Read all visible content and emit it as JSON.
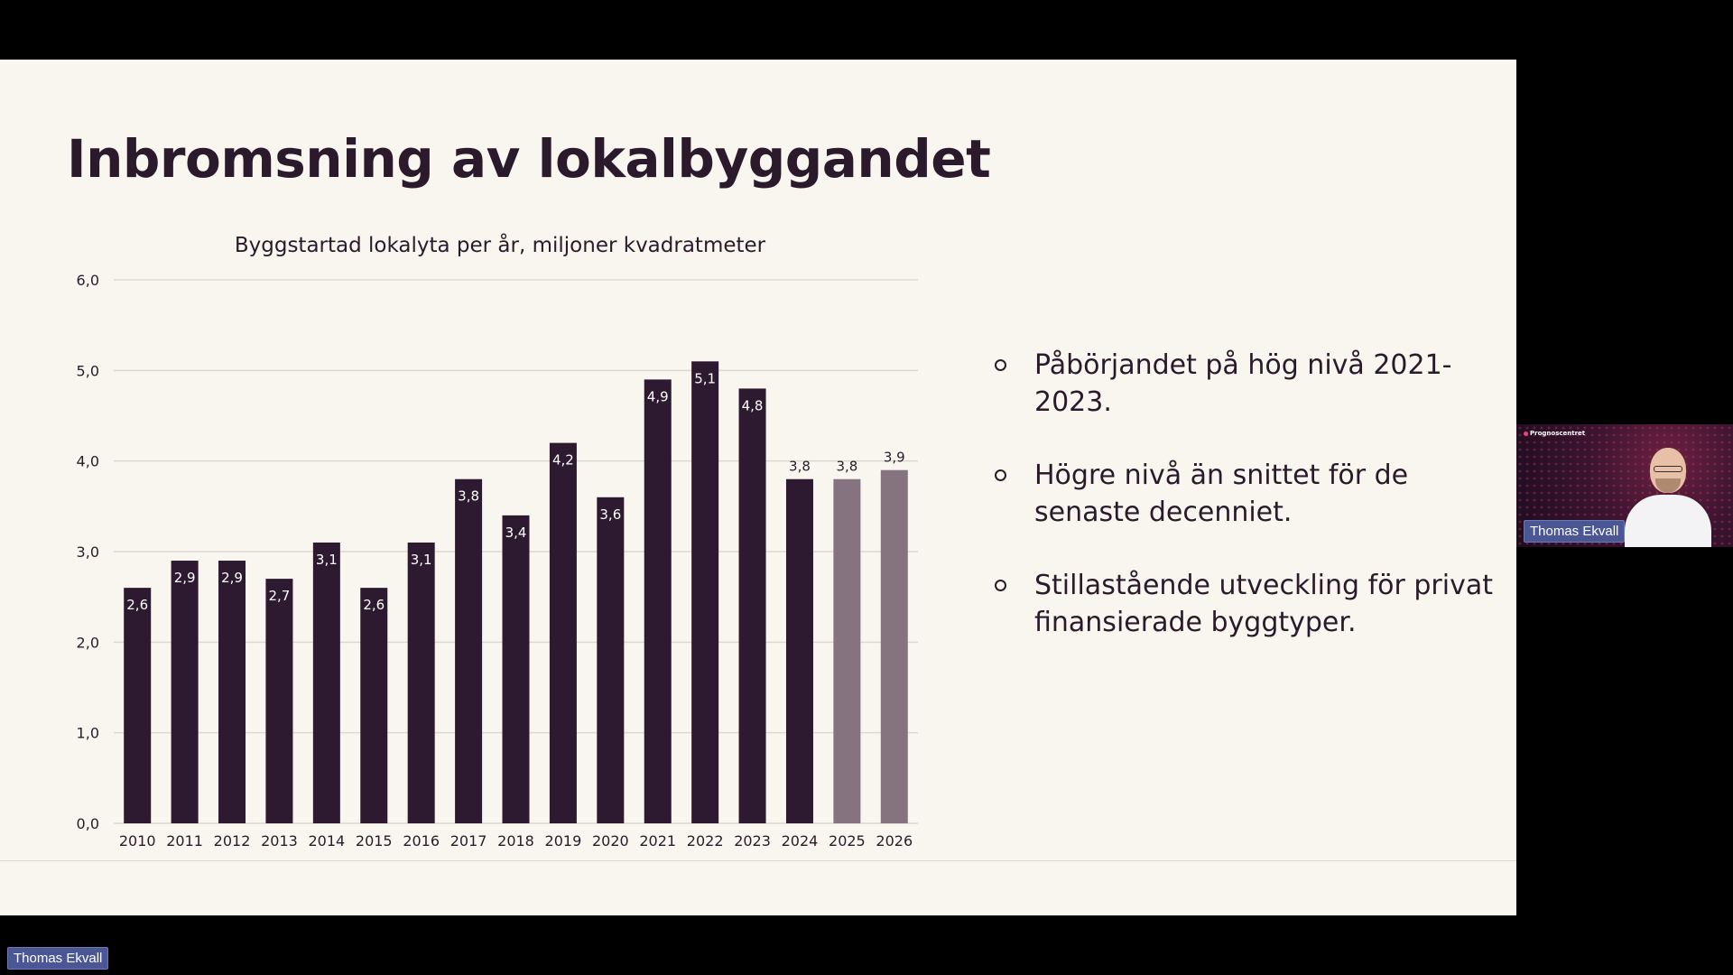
{
  "slide": {
    "title": "Inbromsning av lokalbyggandet",
    "bullets": [
      "Påbörjandet på hög nivå 2021-2023.",
      "Högre nivå än snittet för de senaste decenniet.",
      "Stillastående utveckling för privat finansierade byggtyper."
    ]
  },
  "chart_data": {
    "type": "bar",
    "title": "Byggstartad lokalyta per år, miljoner kvadratmeter",
    "categories": [
      "2010",
      "2011",
      "2012",
      "2013",
      "2014",
      "2015",
      "2016",
      "2017",
      "2018",
      "2019",
      "2020",
      "2021",
      "2022",
      "2023",
      "2024",
      "2025",
      "2026"
    ],
    "values": [
      2.6,
      2.9,
      2.9,
      2.7,
      3.1,
      2.6,
      3.1,
      3.8,
      3.4,
      4.2,
      3.6,
      4.9,
      5.1,
      4.8,
      3.8,
      3.8,
      3.9
    ],
    "value_labels": [
      "2,6",
      "2,9",
      "2,9",
      "2,7",
      "3,1",
      "2,6",
      "3,1",
      "3,8",
      "3,4",
      "4,2",
      "3,6",
      "4,9",
      "5,1",
      "4,8",
      "3,8",
      "3,8",
      "3,9"
    ],
    "forecast": [
      false,
      false,
      false,
      false,
      false,
      false,
      false,
      false,
      false,
      false,
      false,
      false,
      false,
      false,
      false,
      true,
      true
    ],
    "yticks": [
      0,
      1,
      2,
      3,
      4,
      5,
      6
    ],
    "ytick_labels": [
      "0,0",
      "1,0",
      "2,0",
      "3,0",
      "4,0",
      "5,0",
      "6,0"
    ],
    "ylim": [
      0,
      6
    ],
    "grid": true,
    "colors": {
      "bar": "#2d1a30",
      "forecast_bar": "#85747f",
      "grid": "#dcd8d2",
      "text": "#2b1a2b"
    }
  },
  "call": {
    "participant_name": "Thomas Ekvall",
    "webcam_logo": "Prognoscentret",
    "bottom_name": "Thomas Ekvall"
  },
  "colors": {
    "slide_background": "#f9f6ef",
    "screen_background": "#000000",
    "name_tag": "#4a5794"
  }
}
